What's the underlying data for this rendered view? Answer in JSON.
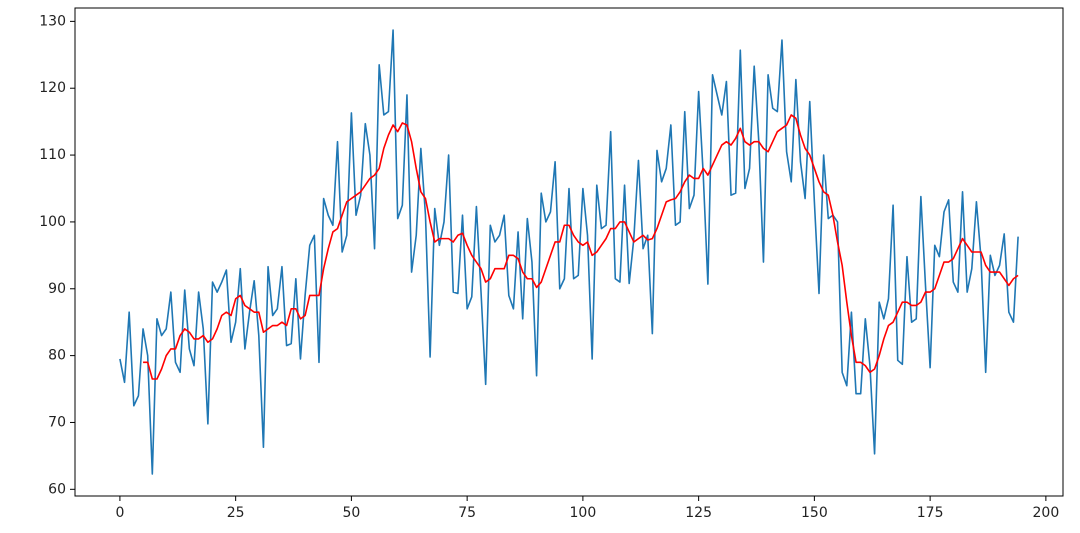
{
  "chart_data": {
    "type": "line",
    "x": [
      0,
      1,
      2,
      3,
      4,
      5,
      6,
      7,
      8,
      9,
      10,
      11,
      12,
      13,
      14,
      15,
      16,
      17,
      18,
      19,
      20,
      21,
      22,
      23,
      24,
      25,
      26,
      27,
      28,
      29,
      30,
      31,
      32,
      33,
      34,
      35,
      36,
      37,
      38,
      39,
      40,
      41,
      42,
      43,
      44,
      45,
      46,
      47,
      48,
      49,
      50,
      51,
      52,
      53,
      54,
      55,
      56,
      57,
      58,
      59,
      60,
      61,
      62,
      63,
      64,
      65,
      66,
      67,
      68,
      69,
      70,
      71,
      72,
      73,
      74,
      75,
      76,
      77,
      78,
      79,
      80,
      81,
      82,
      83,
      84,
      85,
      86,
      87,
      88,
      89,
      90,
      91,
      92,
      93,
      94,
      95,
      96,
      97,
      98,
      99,
      100,
      101,
      102,
      103,
      104,
      105,
      106,
      107,
      108,
      109,
      110,
      111,
      112,
      113,
      114,
      115,
      116,
      117,
      118,
      119,
      120,
      121,
      122,
      123,
      124,
      125,
      126,
      127,
      128,
      129,
      130,
      131,
      132,
      133,
      134,
      135,
      136,
      137,
      138,
      139,
      140,
      141,
      142,
      143,
      144,
      145,
      146,
      147,
      148,
      149,
      150,
      151,
      152,
      153,
      154,
      155,
      156,
      157,
      158,
      159,
      160,
      161,
      162,
      163,
      164,
      165,
      166,
      167,
      168,
      169,
      170,
      171,
      172,
      173,
      174,
      175,
      176,
      177,
      178,
      179,
      180,
      181,
      182,
      183,
      184,
      185,
      186,
      187,
      188,
      189,
      190,
      191,
      192,
      193,
      194
    ],
    "series": [
      {
        "color": "#1f77b4",
        "values": [
          79.5,
          76,
          86.5,
          72.5,
          74,
          84,
          80,
          62.3,
          85.5,
          83,
          84,
          89.5,
          79,
          77.5,
          89.8,
          81,
          78.5,
          89.5,
          84,
          69.8,
          91,
          89.5,
          91,
          92.8,
          82,
          85,
          93,
          81,
          86.5,
          91.2,
          83,
          66.3,
          93.3,
          86,
          87,
          93.3,
          81.5,
          81.8,
          91.5,
          79.5,
          89,
          96.5,
          98,
          79,
          103.5,
          101,
          99.5,
          112,
          95.5,
          98,
          116.3,
          101,
          104,
          114.7,
          110,
          96,
          123.5,
          116,
          116.5,
          128.7,
          100.5,
          102.5,
          119,
          92.5,
          98,
          111,
          101,
          79.8,
          102,
          96.5,
          100,
          110,
          89.5,
          89.3,
          101,
          87,
          88.8,
          102.3,
          89.5,
          75.7,
          99.5,
          97,
          98,
          101,
          89,
          87,
          98.5,
          85.5,
          100.5,
          94,
          77,
          104.3,
          100,
          101.5,
          109,
          90,
          91.5,
          105,
          91.5,
          92,
          105,
          98,
          79.5,
          105.5,
          99,
          99.5,
          113.5,
          91.5,
          91,
          105.5,
          90.8,
          97.5,
          109.2,
          96,
          98,
          83.3,
          110.7,
          106,
          108,
          114.5,
          99.5,
          100,
          116.5,
          102,
          104,
          119.5,
          107,
          90.7,
          122,
          119,
          116,
          121,
          104,
          104.3,
          125.7,
          105,
          108,
          123.3,
          112,
          94,
          122,
          117,
          116.5,
          127.2,
          110.5,
          106,
          121.3,
          109,
          103.5,
          118,
          103,
          89.3,
          110,
          100.5,
          101,
          100,
          77.5,
          75.5,
          86.5,
          74.3,
          74.3,
          85.5,
          78.5,
          65.3,
          88,
          85.5,
          88.5,
          102.5,
          79.3,
          78.7,
          94.8,
          85,
          85.5,
          103.8,
          90.5,
          78.2,
          96.5,
          94.8,
          101.5,
          103.3,
          91,
          89.5,
          104.5,
          89.5,
          93,
          103,
          94.5,
          77.5,
          95,
          92,
          93.5,
          98.2,
          86.5,
          85,
          97.8
        ]
      },
      {
        "color": "#ff0000",
        "values": [
          null,
          null,
          null,
          null,
          null,
          79,
          79,
          76.5,
          76.5,
          78,
          80,
          81,
          81,
          83,
          84,
          83.5,
          82.5,
          82.5,
          83,
          82,
          82.5,
          84,
          86,
          86.5,
          86,
          88.5,
          89,
          87.5,
          87,
          86.5,
          86.5,
          83.5,
          84,
          84.5,
          84.5,
          85,
          84.5,
          87,
          87,
          85.5,
          86,
          89,
          89,
          89,
          93,
          96,
          98.5,
          99,
          101,
          103,
          103.5,
          104,
          104.5,
          105.5,
          106.5,
          107,
          108,
          111,
          113,
          114.5,
          113.5,
          114.8,
          114.5,
          112,
          108,
          104.5,
          103.5,
          100,
          97,
          97.5,
          97.5,
          97.5,
          97,
          98,
          98.3,
          96.5,
          95,
          94,
          93,
          91,
          91.5,
          93,
          93,
          93,
          95,
          95,
          94.5,
          92.5,
          91.5,
          91.5,
          90.2,
          91,
          93,
          95,
          97,
          97,
          99.5,
          99.5,
          98,
          97,
          96.5,
          97,
          95,
          95.5,
          96.5,
          97.5,
          99,
          99,
          100,
          100,
          98.5,
          97,
          97.5,
          98,
          97.3,
          97.5,
          99,
          101,
          103,
          103.3,
          103.5,
          104.5,
          106,
          107,
          106.5,
          106.5,
          108,
          107,
          108.5,
          110,
          111.5,
          112,
          111.5,
          112.5,
          114,
          112,
          111.5,
          112,
          112,
          111,
          110.5,
          112,
          113.5,
          114,
          114.5,
          116,
          115.5,
          113,
          111,
          110,
          108,
          106,
          104.5,
          104,
          101,
          97,
          93.5,
          88,
          83,
          79,
          79,
          78.5,
          77.5,
          78,
          80,
          82.5,
          84.5,
          85,
          86.5,
          88,
          88,
          87.5,
          87.5,
          88,
          89.5,
          89.5,
          90,
          92,
          94,
          94,
          94.5,
          96,
          97.5,
          96.5,
          95.5,
          95.5,
          95.5,
          93.5,
          92.5,
          92.5,
          92.5,
          91.5,
          90.5,
          91.5,
          92
        ]
      }
    ],
    "xlim": [
      -9.7,
      203.7
    ],
    "xticks": [
      0,
      25,
      50,
      75,
      100,
      125,
      150,
      175,
      200
    ],
    "ylim": [
      59,
      132
    ],
    "yticks": [
      60,
      70,
      80,
      90,
      100,
      110,
      120,
      130
    ]
  }
}
